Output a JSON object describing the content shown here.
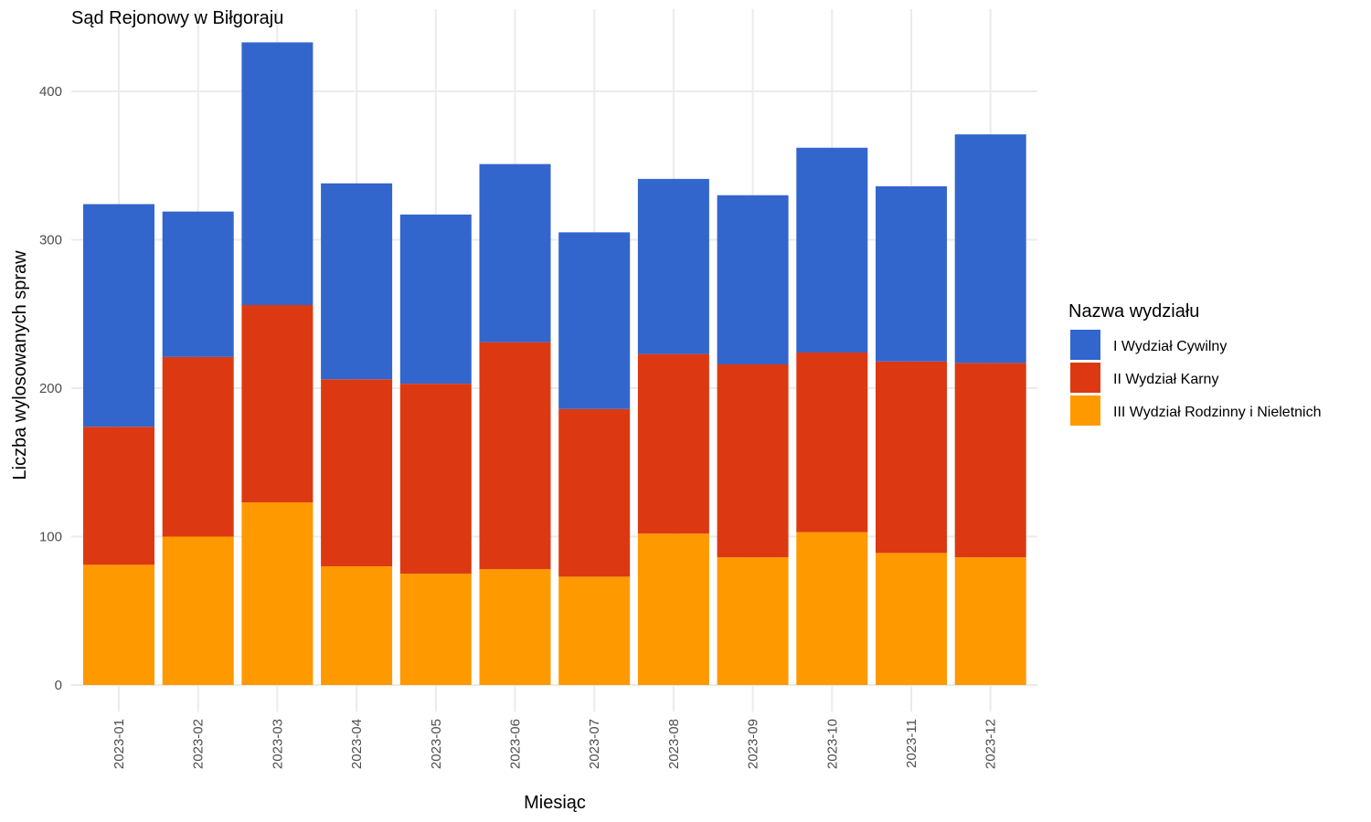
{
  "chart_data": {
    "type": "bar",
    "stacked": true,
    "title": "Sąd Rejonowy w Biłgoraju",
    "xlabel": "Miesiąc",
    "ylabel": "Liczba wylosowanych spraw",
    "ylim": [
      0,
      445
    ],
    "yticks": [
      0,
      100,
      200,
      300,
      400
    ],
    "grid": true,
    "legend_position": "right",
    "legend_title": "Nazwa wydziału",
    "categories": [
      "2023-01",
      "2023-02",
      "2023-03",
      "2023-04",
      "2023-05",
      "2023-06",
      "2023-07",
      "2023-08",
      "2023-09",
      "2023-10",
      "2023-11",
      "2023-12"
    ],
    "series": [
      {
        "name": "III Wydział Rodzinny i Nieletnich",
        "color": "#FF9900",
        "values": [
          81,
          100,
          123,
          80,
          75,
          78,
          73,
          102,
          86,
          103,
          89,
          86
        ]
      },
      {
        "name": "II Wydział Karny",
        "color": "#DC3912",
        "values": [
          93,
          121,
          133,
          126,
          128,
          153,
          113,
          121,
          130,
          121,
          129,
          131
        ]
      },
      {
        "name": "I Wydział Cywilny",
        "color": "#3366CC",
        "values": [
          150,
          98,
          177,
          132,
          114,
          120,
          119,
          118,
          114,
          138,
          118,
          154
        ]
      }
    ],
    "legend_order": [
      "I Wydział Cywilny",
      "II Wydział Karny",
      "III Wydział Rodzinny i Nieletnich"
    ]
  }
}
